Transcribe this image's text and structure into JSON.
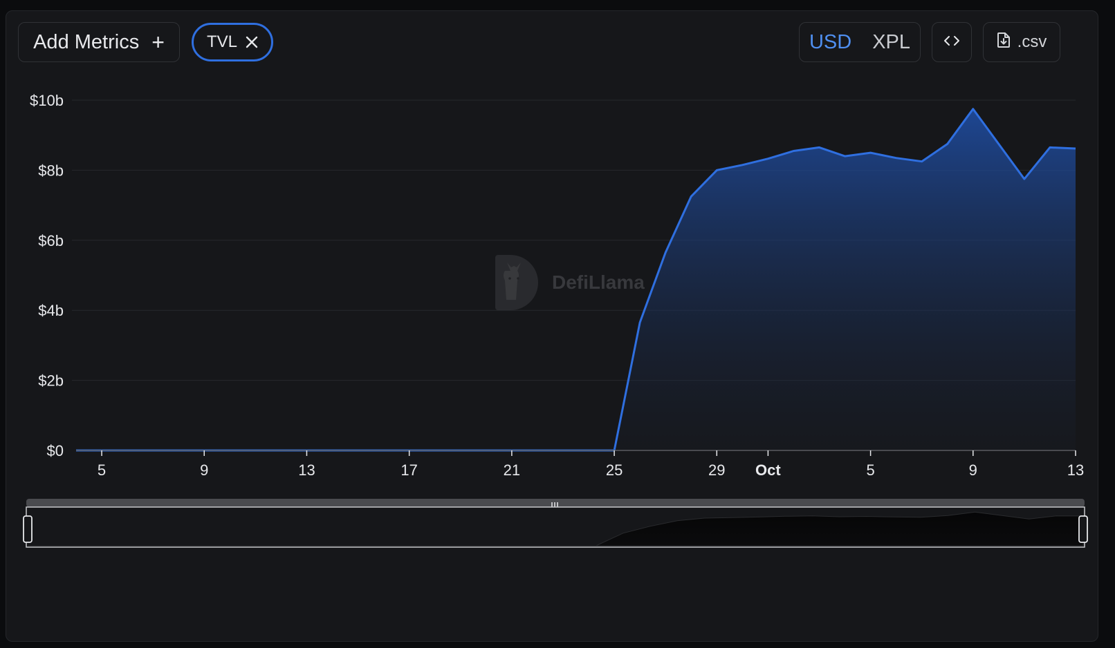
{
  "toolbar": {
    "add_metrics_label": "Add Metrics",
    "add_icon": "plus-icon",
    "metric_chip_label": "TVL",
    "remove_icon": "close-icon",
    "currency_options": [
      "USD",
      "XPL"
    ],
    "currency_selected": "USD",
    "embed_icon": "code-brackets-icon",
    "csv_label": ".csv",
    "csv_icon": "file-download-icon"
  },
  "watermark": {
    "text": "DefiLlama",
    "icon": "defillama-logo-icon"
  },
  "colors": {
    "accent": "#2f6fe0",
    "line": "#2f6fe0",
    "area_top": "#1f4fa8",
    "active_currency": "#4f8ff0"
  },
  "chart_data": {
    "type": "area",
    "series": [
      {
        "values": [
          {
            "x": "Sep 4",
            "y": 0
          },
          {
            "x": "Sep 5",
            "y": 0
          },
          {
            "x": "Sep 6",
            "y": 0
          },
          {
            "x": "Sep 7",
            "y": 0
          },
          {
            "x": "Sep 8",
            "y": 0
          },
          {
            "x": "Sep 9",
            "y": 0
          },
          {
            "x": "Sep 10",
            "y": 0
          },
          {
            "x": "Sep 11",
            "y": 0
          },
          {
            "x": "Sep 12",
            "y": 0
          },
          {
            "x": "Sep 13",
            "y": 0
          },
          {
            "x": "Sep 14",
            "y": 0
          },
          {
            "x": "Sep 15",
            "y": 0
          },
          {
            "x": "Sep 16",
            "y": 0
          },
          {
            "x": "Sep 17",
            "y": 0
          },
          {
            "x": "Sep 18",
            "y": 0
          },
          {
            "x": "Sep 19",
            "y": 0
          },
          {
            "x": "Sep 20",
            "y": 0
          },
          {
            "x": "Sep 21",
            "y": 0
          },
          {
            "x": "Sep 22",
            "y": 0
          },
          {
            "x": "Sep 23",
            "y": 0
          },
          {
            "x": "Sep 24",
            "y": 0
          },
          {
            "x": "Sep 25",
            "y": 0
          },
          {
            "x": "Sep 26",
            "y": 3.65
          },
          {
            "x": "Sep 27",
            "y": 5.65
          },
          {
            "x": "Sep 28",
            "y": 7.25
          },
          {
            "x": "Sep 29",
            "y": 8.0
          },
          {
            "x": "Sep 30",
            "y": 8.15
          },
          {
            "x": "Oct 1",
            "y": 8.33
          },
          {
            "x": "Oct 2",
            "y": 8.55
          },
          {
            "x": "Oct 3",
            "y": 8.65
          },
          {
            "x": "Oct 4",
            "y": 8.4
          },
          {
            "x": "Oct 5",
            "y": 8.5
          },
          {
            "x": "Oct 6",
            "y": 8.35
          },
          {
            "x": "Oct 7",
            "y": 8.25
          },
          {
            "x": "Oct 8",
            "y": 8.75
          },
          {
            "x": "Oct 9",
            "y": 9.75
          },
          {
            "x": "Oct 10",
            "y": 8.75
          },
          {
            "x": "Oct 11",
            "y": 7.75
          },
          {
            "x": "Oct 12",
            "y": 8.65
          },
          {
            "x": "Oct 13",
            "y": 8.62
          }
        ]
      }
    ],
    "y_unit": "billion USD",
    "ylim": [
      0,
      10
    ],
    "y_ticks": [
      0,
      2,
      4,
      6,
      8,
      10
    ],
    "y_tick_labels": [
      "$0",
      "$2b",
      "$4b",
      "$6b",
      "$8b",
      "$10b"
    ],
    "x_ticks": [
      {
        "x": "Sep 5",
        "label": "5"
      },
      {
        "x": "Sep 9",
        "label": "9"
      },
      {
        "x": "Sep 13",
        "label": "13"
      },
      {
        "x": "Sep 17",
        "label": "17"
      },
      {
        "x": "Sep 21",
        "label": "21"
      },
      {
        "x": "Sep 25",
        "label": "25"
      },
      {
        "x": "Sep 29",
        "label": "29"
      },
      {
        "x": "Oct 1",
        "label": "Oct",
        "bold": true
      },
      {
        "x": "Oct 5",
        "label": "5"
      },
      {
        "x": "Oct 9",
        "label": "9"
      },
      {
        "x": "Oct 13",
        "label": "13"
      }
    ],
    "grid": true,
    "legend": "none",
    "brush": {
      "range_start": "Sep 4",
      "range_end": "Oct 13"
    }
  }
}
